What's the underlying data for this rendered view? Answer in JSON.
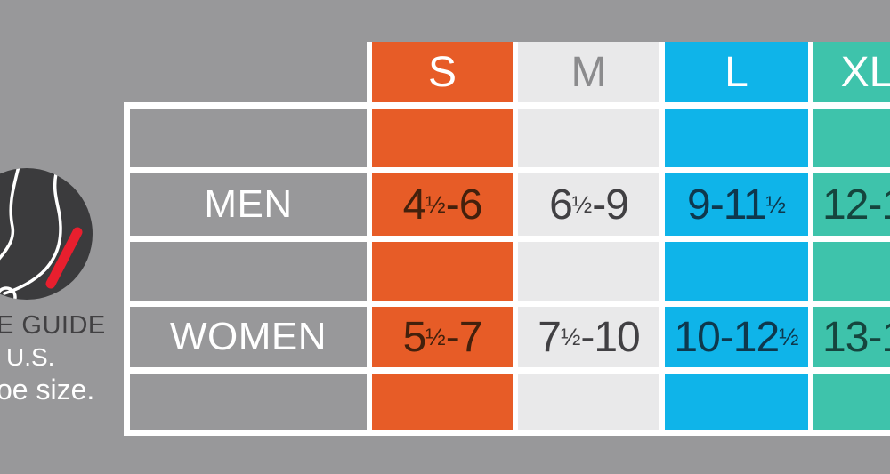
{
  "caption": {
    "line1": "E GUIDE",
    "line2": "U.S.",
    "line3": "oe size."
  },
  "icon": "foot-with-red-slash-icon",
  "table": {
    "size_headers": [
      "S",
      "M",
      "L",
      "XL"
    ],
    "rows": [
      {
        "label": "MEN",
        "values": [
          "4½-6",
          "6½-9",
          "9-11½",
          "12-1"
        ]
      },
      {
        "label": "WOMEN",
        "values": [
          "5½-7",
          "7½-10",
          "10-12½",
          "13-1"
        ]
      }
    ]
  },
  "chart_data": {
    "type": "table",
    "title": "",
    "columns": [
      "S",
      "M",
      "L",
      "XL"
    ],
    "rows": [
      {
        "label": "MEN",
        "values": [
          "4½-6",
          "6½-9",
          "9-11½",
          "12-1"
        ]
      },
      {
        "label": "WOMEN",
        "values": [
          "5½-7",
          "7½-10",
          "10-12½",
          "13-1"
        ]
      }
    ]
  },
  "colors": {
    "background": "#98989a",
    "grid_line": "#ffffff",
    "caption_dark": "#414042",
    "caption_light": "#ffffff",
    "icon_circle": "#3b3b3d",
    "icon_slash": "#e81f2e",
    "columns": [
      {
        "key": "s",
        "bg": "#e75c27",
        "header_text": "#ffffff",
        "value_text": "#43200c"
      },
      {
        "key": "m",
        "bg": "#e9e9ea",
        "header_text": "#8b8b8d",
        "value_text": "#414043"
      },
      {
        "key": "l",
        "bg": "#0fb4e9",
        "header_text": "#ffffff",
        "value_text": "#0e384d"
      },
      {
        "key": "xl",
        "bg": "#3ec3ab",
        "header_text": "#ffffff",
        "value_text": "#15453e"
      }
    ]
  }
}
